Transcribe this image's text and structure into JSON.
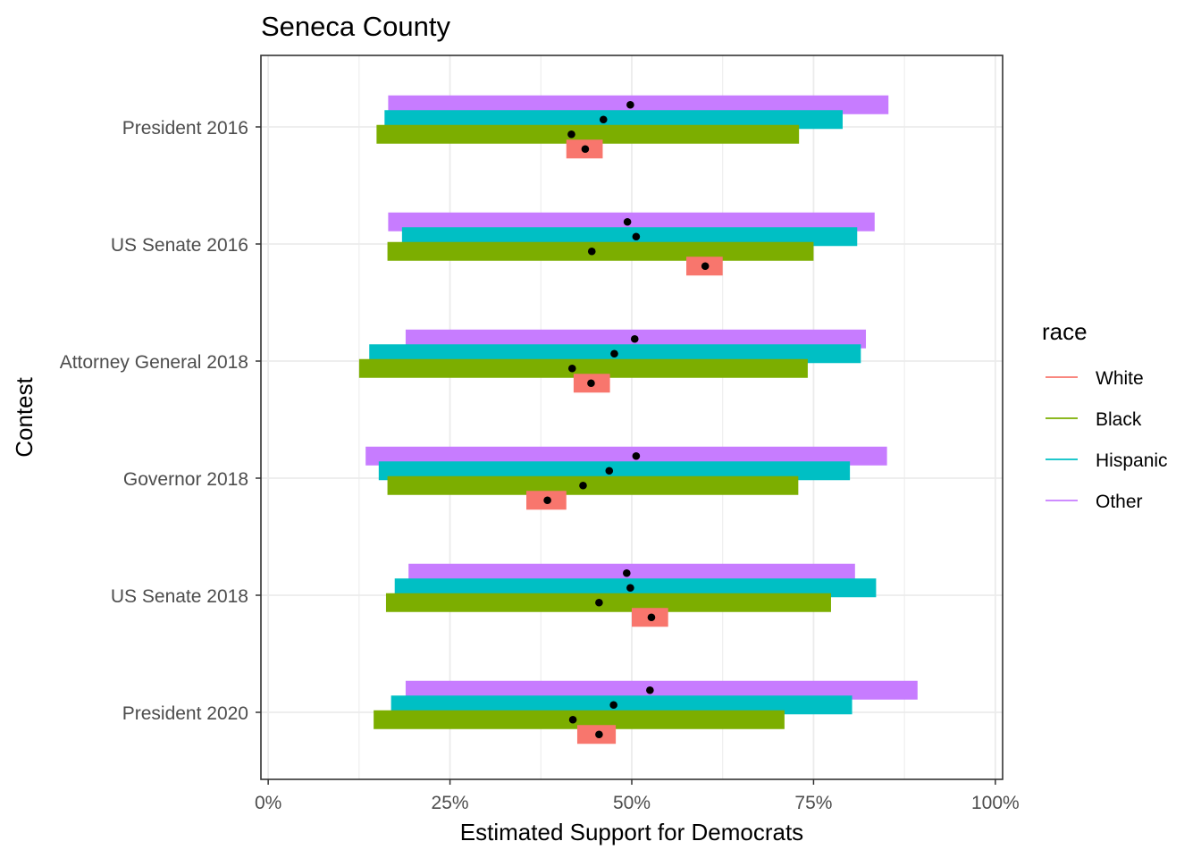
{
  "chart_data": {
    "type": "bar",
    "subtype": "horizontal interval (range) bars with point estimates",
    "title": "Seneca County",
    "xlabel": "Estimated Support for Democrats",
    "ylabel": "Contest",
    "xlim": [
      -0.01,
      1.01
    ],
    "x_ticks": [
      0,
      0.25,
      0.5,
      0.75,
      1.0
    ],
    "x_tick_labels": [
      "0%",
      "25%",
      "50%",
      "75%",
      "100%"
    ],
    "grid": true,
    "legend_title": "race",
    "legend_position": "right",
    "categories": [
      "President 2016",
      "US Senate 2016",
      "Attorney General 2018",
      "Governor 2018",
      "US Senate 2018",
      "President 2020"
    ],
    "series": [
      {
        "name": "White",
        "color": "#F8766D",
        "low": [
          0.41,
          0.575,
          0.42,
          0.355,
          0.5,
          0.425
        ],
        "high": [
          0.46,
          0.625,
          0.47,
          0.41,
          0.55,
          0.478
        ],
        "estimate": [
          0.436,
          0.601,
          0.444,
          0.384,
          0.527,
          0.455
        ]
      },
      {
        "name": "Black",
        "color": "#7CAE00",
        "low": [
          0.149,
          0.164,
          0.125,
          0.164,
          0.162,
          0.145
        ],
        "high": [
          0.73,
          0.75,
          0.742,
          0.729,
          0.774,
          0.71
        ],
        "estimate": [
          0.417,
          0.445,
          0.418,
          0.433,
          0.455,
          0.419
        ]
      },
      {
        "name": "Hispanic",
        "color": "#00BFC4",
        "low": [
          0.16,
          0.184,
          0.139,
          0.152,
          0.174,
          0.169
        ],
        "high": [
          0.79,
          0.81,
          0.815,
          0.8,
          0.836,
          0.803
        ],
        "estimate": [
          0.461,
          0.506,
          0.476,
          0.469,
          0.498,
          0.475
        ]
      },
      {
        "name": "Other",
        "color": "#C77CFF",
        "low": [
          0.165,
          0.165,
          0.189,
          0.134,
          0.193,
          0.189
        ],
        "high": [
          0.853,
          0.834,
          0.822,
          0.851,
          0.807,
          0.893
        ],
        "estimate": [
          0.498,
          0.494,
          0.504,
          0.506,
          0.493,
          0.525
        ]
      }
    ]
  }
}
